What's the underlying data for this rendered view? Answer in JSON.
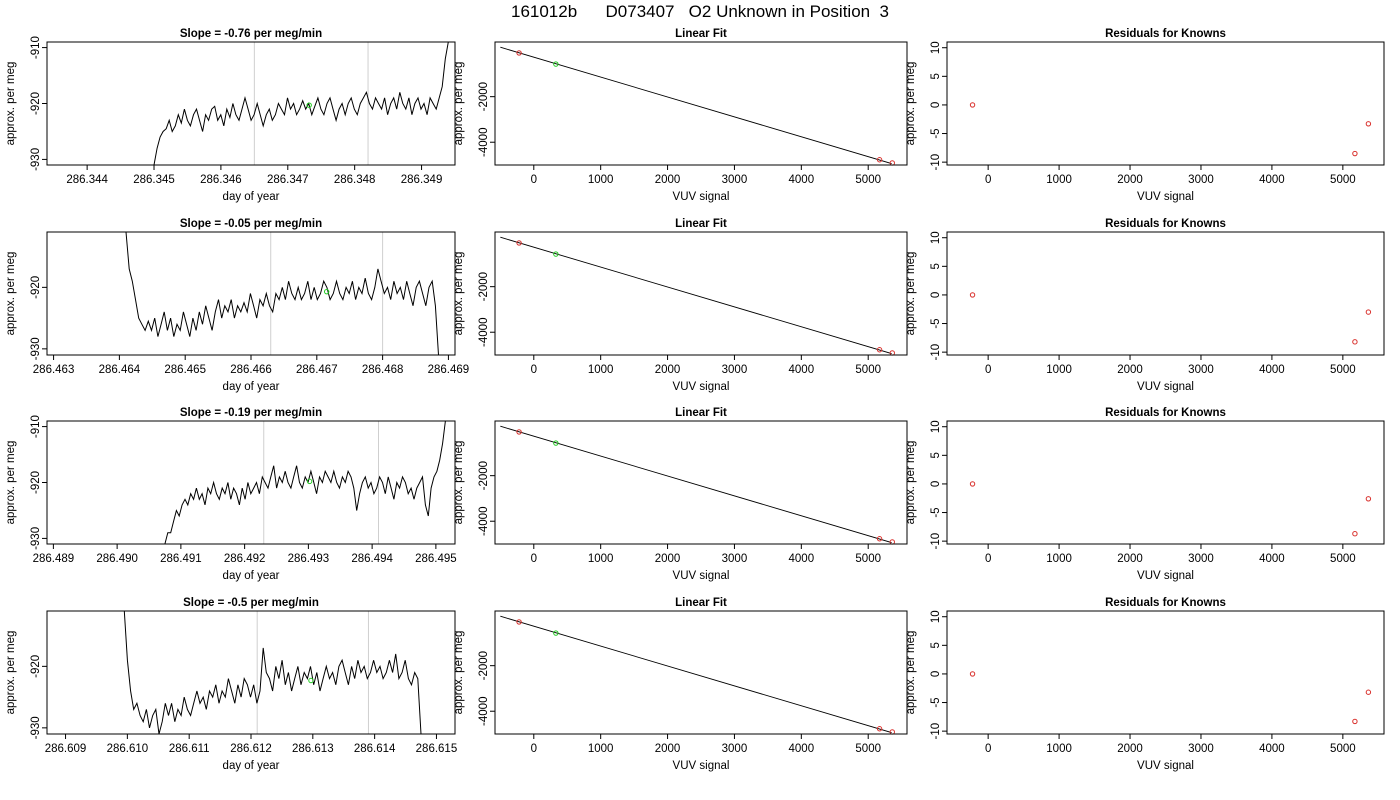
{
  "page_title": "161012b      D073407   O2 Unknown in Position  3",
  "colors": {
    "trace": "#000000",
    "known_point": "#d9302c",
    "unknown_point": "#22cc22",
    "vertical_marker": "#cfcfcf",
    "fit_line": "#000000"
  },
  "chart_data": [
    {
      "type": "line",
      "panel": "time-series",
      "row": 1,
      "title": "Slope =  -0.76  per meg/min",
      "xlabel": "day of year",
      "ylabel": "approx. per meg",
      "xlim": [
        286.3434,
        286.3495
      ],
      "ylim": [
        -931,
        -909
      ],
      "x_ticks": [
        "286.344",
        "286.345",
        "286.346",
        "286.347",
        "286.348",
        "286.349"
      ],
      "x_tick_values": [
        286.344,
        286.345,
        286.346,
        286.347,
        286.348,
        286.349
      ],
      "y_ticks": [
        "-930",
        "-920",
        "-910"
      ],
      "y_tick_values": [
        -930,
        -920,
        -910
      ],
      "vertical_markers": [
        286.3465,
        286.3482
      ],
      "series": [
        {
          "x_start": 286.345,
          "x_end": 286.3494,
          "values": [
            -931,
            -928,
            -926,
            -925,
            -924.5,
            -923,
            -925,
            -924,
            -922,
            -923.5,
            -921,
            -923,
            -924,
            -922,
            -921,
            -923,
            -925,
            -922,
            -923,
            -921,
            -920.5,
            -923,
            -922,
            -924,
            -921,
            -922.5,
            -920,
            -922,
            -923,
            -921,
            -919,
            -921,
            -923,
            -922,
            -920,
            -922,
            -924,
            -922,
            -921,
            -923,
            -922,
            -920,
            -921,
            -922,
            -919,
            -921,
            -920,
            -922,
            -921,
            -919.5,
            -921,
            -920,
            -922,
            -920.5,
            -919,
            -921,
            -922,
            -920,
            -919,
            -921,
            -923,
            -921,
            -920,
            -922,
            -920,
            -919,
            -921,
            -922,
            -920,
            -919,
            -918,
            -920,
            -921,
            -919,
            -920,
            -921,
            -919,
            -922,
            -920,
            -919,
            -921,
            -918,
            -920,
            -921,
            -919,
            -922,
            -920,
            -919,
            -921,
            -920,
            -922,
            -919,
            -920,
            -921,
            -919,
            -917,
            -912,
            -909
          ]
        }
      ],
      "points": [
        {
          "x": 286.34732,
          "y": -920.3,
          "kind": "unknown"
        }
      ]
    },
    {
      "type": "scatter",
      "panel": "linear-fit",
      "row": 1,
      "title": "Linear Fit",
      "xlabel": "VUV signal",
      "ylabel": "approx. per meg",
      "xlim": [
        -580,
        5580
      ],
      "ylim": [
        -5000,
        400
      ],
      "x_ticks": [
        "0",
        "1000",
        "2000",
        "3000",
        "4000",
        "5000"
      ],
      "x_tick_values": [
        0,
        1000,
        2000,
        3000,
        4000,
        5000
      ],
      "y_ticks": [
        "-2000",
        "-4000"
      ],
      "y_tick_values": [
        -2000,
        -4000
      ],
      "fit_line": {
        "x": [
          -500,
          5350
        ],
        "y": [
          170,
          -4940
        ]
      },
      "points": [
        {
          "x": -220,
          "y": -80,
          "kind": "known"
        },
        {
          "x": 330,
          "y": -570,
          "kind": "unknown"
        },
        {
          "x": 5170,
          "y": -4770,
          "kind": "known"
        },
        {
          "x": 5360,
          "y": -4910,
          "kind": "known"
        }
      ]
    },
    {
      "type": "scatter",
      "panel": "residuals",
      "row": 1,
      "title": "Residuals for Knowns",
      "xlabel": "VUV signal",
      "ylabel": "approx. per meg",
      "xlim": [
        -580,
        5580
      ],
      "ylim": [
        -10.5,
        11
      ],
      "x_ticks": [
        "0",
        "1000",
        "2000",
        "3000",
        "4000",
        "5000"
      ],
      "x_tick_values": [
        0,
        1000,
        2000,
        3000,
        4000,
        5000
      ],
      "y_ticks": [
        "-10",
        "-5",
        "0",
        "5",
        "10"
      ],
      "y_tick_values": [
        -10,
        -5,
        0,
        5,
        10
      ],
      "points": [
        {
          "x": -220,
          "y": 0
        },
        {
          "x": 5170,
          "y": -8.5
        },
        {
          "x": 5360,
          "y": -3.3
        }
      ]
    },
    {
      "type": "line",
      "panel": "time-series",
      "row": 2,
      "title": "Slope =  -0.05  per meg/min",
      "xlabel": "day of year",
      "ylabel": "approx. per meg",
      "xlim": [
        286.4629,
        286.4691
      ],
      "ylim": [
        -931,
        -911
      ],
      "x_ticks": [
        "286.463",
        "286.464",
        "286.465",
        "286.466",
        "286.467",
        "286.468",
        "286.469"
      ],
      "x_tick_values": [
        286.463,
        286.464,
        286.465,
        286.466,
        286.467,
        286.468,
        286.469
      ],
      "y_ticks": [
        "-930",
        "-920"
      ],
      "y_tick_values": [
        -930,
        -920
      ],
      "vertical_markers": [
        286.4663,
        286.468
      ],
      "series": [
        {
          "x_start": 286.4641,
          "x_end": 286.46885,
          "values": [
            -911,
            -917,
            -919,
            -922,
            -925,
            -926,
            -927,
            -925.5,
            -927,
            -925,
            -928,
            -926,
            -924,
            -927,
            -925,
            -928,
            -926,
            -927,
            -924,
            -926,
            -928,
            -925,
            -927,
            -924,
            -926,
            -923,
            -925,
            -927,
            -924,
            -922,
            -925,
            -923,
            -924,
            -922,
            -925,
            -923,
            -924,
            -922.5,
            -924,
            -921,
            -923,
            -925,
            -922,
            -923,
            -921,
            -923,
            -924,
            -921,
            -922,
            -920,
            -922,
            -919,
            -921,
            -922,
            -920,
            -922,
            -921,
            -919,
            -922,
            -920,
            -922,
            -921,
            -919,
            -920,
            -922,
            -921,
            -919,
            -921,
            -922,
            -920,
            -921,
            -919,
            -922,
            -920,
            -921,
            -918.5,
            -921,
            -922,
            -920,
            -917,
            -919,
            -921,
            -920,
            -922,
            -919,
            -921,
            -920,
            -922,
            -919,
            -921,
            -923,
            -920,
            -919,
            -921,
            -923,
            -920,
            -919,
            -923,
            -931
          ]
        }
      ],
      "points": [
        {
          "x": 286.46715,
          "y": -920.7,
          "kind": "unknown"
        }
      ]
    },
    {
      "type": "scatter",
      "panel": "linear-fit",
      "row": 2,
      "title": "Linear Fit",
      "xlabel": "VUV signal",
      "ylabel": "approx. per meg",
      "xlim": [
        -580,
        5580
      ],
      "ylim": [
        -5000,
        400
      ],
      "x_ticks": [
        "0",
        "1000",
        "2000",
        "3000",
        "4000",
        "5000"
      ],
      "x_tick_values": [
        0,
        1000,
        2000,
        3000,
        4000,
        5000
      ],
      "y_ticks": [
        "-2000",
        "-4000"
      ],
      "y_tick_values": [
        -2000,
        -4000
      ],
      "fit_line": {
        "x": [
          -500,
          5350
        ],
        "y": [
          170,
          -4940
        ]
      },
      "points": [
        {
          "x": -220,
          "y": -80,
          "kind": "known"
        },
        {
          "x": 330,
          "y": -570,
          "kind": "unknown"
        },
        {
          "x": 5170,
          "y": -4770,
          "kind": "known"
        },
        {
          "x": 5360,
          "y": -4910,
          "kind": "known"
        }
      ]
    },
    {
      "type": "scatter",
      "panel": "residuals",
      "row": 2,
      "title": "Residuals for Knowns",
      "xlabel": "VUV signal",
      "ylabel": "approx. per meg",
      "xlim": [
        -580,
        5580
      ],
      "ylim": [
        -10.5,
        11
      ],
      "x_ticks": [
        "0",
        "1000",
        "2000",
        "3000",
        "4000",
        "5000"
      ],
      "x_tick_values": [
        0,
        1000,
        2000,
        3000,
        4000,
        5000
      ],
      "y_ticks": [
        "-10",
        "-5",
        "0",
        "5",
        "10"
      ],
      "y_tick_values": [
        -10,
        -5,
        0,
        5,
        10
      ],
      "points": [
        {
          "x": -220,
          "y": 0
        },
        {
          "x": 5170,
          "y": -8.2
        },
        {
          "x": 5360,
          "y": -3.0
        }
      ]
    },
    {
      "type": "line",
      "panel": "time-series",
      "row": 3,
      "title": "Slope =  -0.19  per meg/min",
      "xlabel": "day of year",
      "ylabel": "approx. per meg",
      "xlim": [
        286.4889,
        286.4953
      ],
      "ylim": [
        -931,
        -909
      ],
      "x_ticks": [
        "286.489",
        "286.490",
        "286.491",
        "286.492",
        "286.493",
        "286.494",
        "286.495"
      ],
      "x_tick_values": [
        286.489,
        286.49,
        286.491,
        286.492,
        286.493,
        286.494,
        286.495
      ],
      "y_ticks": [
        "-930",
        "-920",
        "-910"
      ],
      "y_tick_values": [
        -930,
        -920,
        -910
      ],
      "vertical_markers": [
        286.4923,
        286.4941
      ],
      "series": [
        {
          "x_start": 286.49075,
          "x_end": 286.49515,
          "values": [
            -931,
            -929,
            -929,
            -927,
            -925,
            -926,
            -924,
            -923,
            -924,
            -922,
            -923,
            -921,
            -923,
            -922,
            -924,
            -921,
            -922,
            -920,
            -922,
            -923,
            -921,
            -922,
            -920,
            -923,
            -921,
            -922,
            -924,
            -921,
            -923,
            -920,
            -922,
            -921,
            -920,
            -922,
            -919,
            -920,
            -921,
            -919,
            -917,
            -921,
            -919,
            -920,
            -918,
            -920,
            -921,
            -919,
            -917,
            -920,
            -921,
            -919,
            -920,
            -918,
            -920,
            -922,
            -919,
            -920,
            -918,
            -919,
            -920,
            -918,
            -920,
            -921,
            -919,
            -920,
            -918,
            -919,
            -921,
            -925,
            -922,
            -920,
            -919,
            -921,
            -920,
            -922,
            -921,
            -919,
            -920,
            -922,
            -919,
            -921,
            -923,
            -920,
            -921,
            -919,
            -920,
            -922,
            -921,
            -923,
            -921,
            -920,
            -919,
            -924,
            -926,
            -921,
            -919,
            -918,
            -916,
            -913,
            -909
          ]
        }
      ],
      "points": [
        {
          "x": 286.49302,
          "y": -919.8,
          "kind": "unknown"
        }
      ]
    },
    {
      "type": "scatter",
      "panel": "linear-fit",
      "row": 3,
      "title": "Linear Fit",
      "xlabel": "VUV signal",
      "ylabel": "approx. per meg",
      "xlim": [
        -580,
        5580
      ],
      "ylim": [
        -5000,
        400
      ],
      "x_ticks": [
        "0",
        "1000",
        "2000",
        "3000",
        "4000",
        "5000"
      ],
      "x_tick_values": [
        0,
        1000,
        2000,
        3000,
        4000,
        5000
      ],
      "y_ticks": [
        "-2000",
        "-4000"
      ],
      "y_tick_values": [
        -2000,
        -4000
      ],
      "fit_line": {
        "x": [
          -500,
          5350
        ],
        "y": [
          170,
          -4940
        ]
      },
      "points": [
        {
          "x": -220,
          "y": -80,
          "kind": "known"
        },
        {
          "x": 330,
          "y": -570,
          "kind": "unknown"
        },
        {
          "x": 5170,
          "y": -4770,
          "kind": "known"
        },
        {
          "x": 5360,
          "y": -4910,
          "kind": "known"
        }
      ]
    },
    {
      "type": "scatter",
      "panel": "residuals",
      "row": 3,
      "title": "Residuals for Knowns",
      "xlabel": "VUV signal",
      "ylabel": "approx. per meg",
      "xlim": [
        -580,
        5580
      ],
      "ylim": [
        -10.5,
        11
      ],
      "x_ticks": [
        "0",
        "1000",
        "2000",
        "3000",
        "4000",
        "5000"
      ],
      "x_tick_values": [
        0,
        1000,
        2000,
        3000,
        4000,
        5000
      ],
      "y_ticks": [
        "-10",
        "-5",
        "0",
        "5",
        "10"
      ],
      "y_tick_values": [
        -10,
        -5,
        0,
        5,
        10
      ],
      "points": [
        {
          "x": -220,
          "y": 0
        },
        {
          "x": 5170,
          "y": -8.7
        },
        {
          "x": 5360,
          "y": -2.6
        }
      ]
    },
    {
      "type": "line",
      "panel": "time-series",
      "row": 4,
      "title": "Slope =  -0.5  per meg/min",
      "xlabel": "day of year",
      "ylabel": "approx. per meg",
      "xlim": [
        286.6087,
        286.6153
      ],
      "ylim": [
        -931,
        -911
      ],
      "x_ticks": [
        "286.609",
        "286.610",
        "286.611",
        "286.612",
        "286.613",
        "286.614",
        "286.615"
      ],
      "x_tick_values": [
        286.609,
        286.61,
        286.611,
        286.612,
        286.613,
        286.614,
        286.615
      ],
      "y_ticks": [
        "-930",
        "-920"
      ],
      "y_tick_values": [
        -930,
        -920
      ],
      "vertical_markers": [
        286.6121,
        286.6139
      ],
      "series": [
        {
          "x_start": 286.60995,
          "x_end": 286.61475,
          "values": [
            -911,
            -919,
            -924,
            -927,
            -926,
            -928,
            -929,
            -927,
            -930,
            -928,
            -927,
            -931,
            -929,
            -926,
            -928,
            -926,
            -929,
            -927,
            -928,
            -925,
            -927,
            -928,
            -926,
            -924,
            -926,
            -925,
            -927,
            -924,
            -925,
            -923,
            -926,
            -924,
            -925,
            -922,
            -924,
            -926,
            -923,
            -925,
            -922,
            -923,
            -925,
            -923,
            -926,
            -924,
            -917,
            -921,
            -922,
            -924,
            -920,
            -922,
            -919,
            -923,
            -921,
            -924,
            -922,
            -920,
            -923,
            -921,
            -922,
            -920,
            -923,
            -921,
            -924,
            -922,
            -920,
            -922,
            -921,
            -923,
            -920,
            -919,
            -921,
            -923,
            -920,
            -922,
            -919,
            -921,
            -920,
            -922,
            -921,
            -919,
            -921,
            -920,
            -922,
            -921,
            -919,
            -921,
            -918,
            -922,
            -921,
            -919,
            -922,
            -923,
            -921,
            -922,
            -931
          ]
        }
      ],
      "points": [
        {
          "x": 286.61297,
          "y": -922.3,
          "kind": "unknown"
        }
      ]
    },
    {
      "type": "scatter",
      "panel": "linear-fit",
      "row": 4,
      "title": "Linear Fit",
      "xlabel": "VUV signal",
      "ylabel": "approx. per meg",
      "xlim": [
        -580,
        5580
      ],
      "ylim": [
        -5000,
        400
      ],
      "x_ticks": [
        "0",
        "1000",
        "2000",
        "3000",
        "4000",
        "5000"
      ],
      "x_tick_values": [
        0,
        1000,
        2000,
        3000,
        4000,
        5000
      ],
      "y_ticks": [
        "-2000",
        "-4000"
      ],
      "y_tick_values": [
        -2000,
        -4000
      ],
      "fit_line": {
        "x": [
          -500,
          5350
        ],
        "y": [
          170,
          -4940
        ]
      },
      "points": [
        {
          "x": -220,
          "y": -80,
          "kind": "known"
        },
        {
          "x": 330,
          "y": -570,
          "kind": "unknown"
        },
        {
          "x": 5170,
          "y": -4770,
          "kind": "known"
        },
        {
          "x": 5360,
          "y": -4910,
          "kind": "known"
        }
      ]
    },
    {
      "type": "scatter",
      "panel": "residuals",
      "row": 4,
      "title": "Residuals for Knowns",
      "xlabel": "VUV signal",
      "ylabel": "approx. per meg",
      "xlim": [
        -580,
        5580
      ],
      "ylim": [
        -10.5,
        11
      ],
      "x_ticks": [
        "0",
        "1000",
        "2000",
        "3000",
        "4000",
        "5000"
      ],
      "x_tick_values": [
        0,
        1000,
        2000,
        3000,
        4000,
        5000
      ],
      "y_ticks": [
        "-10",
        "-5",
        "0",
        "5",
        "10"
      ],
      "y_tick_values": [
        -10,
        -5,
        0,
        5,
        10
      ],
      "points": [
        {
          "x": -220,
          "y": 0
        },
        {
          "x": 5170,
          "y": -8.3
        },
        {
          "x": 5360,
          "y": -3.2
        }
      ]
    }
  ]
}
